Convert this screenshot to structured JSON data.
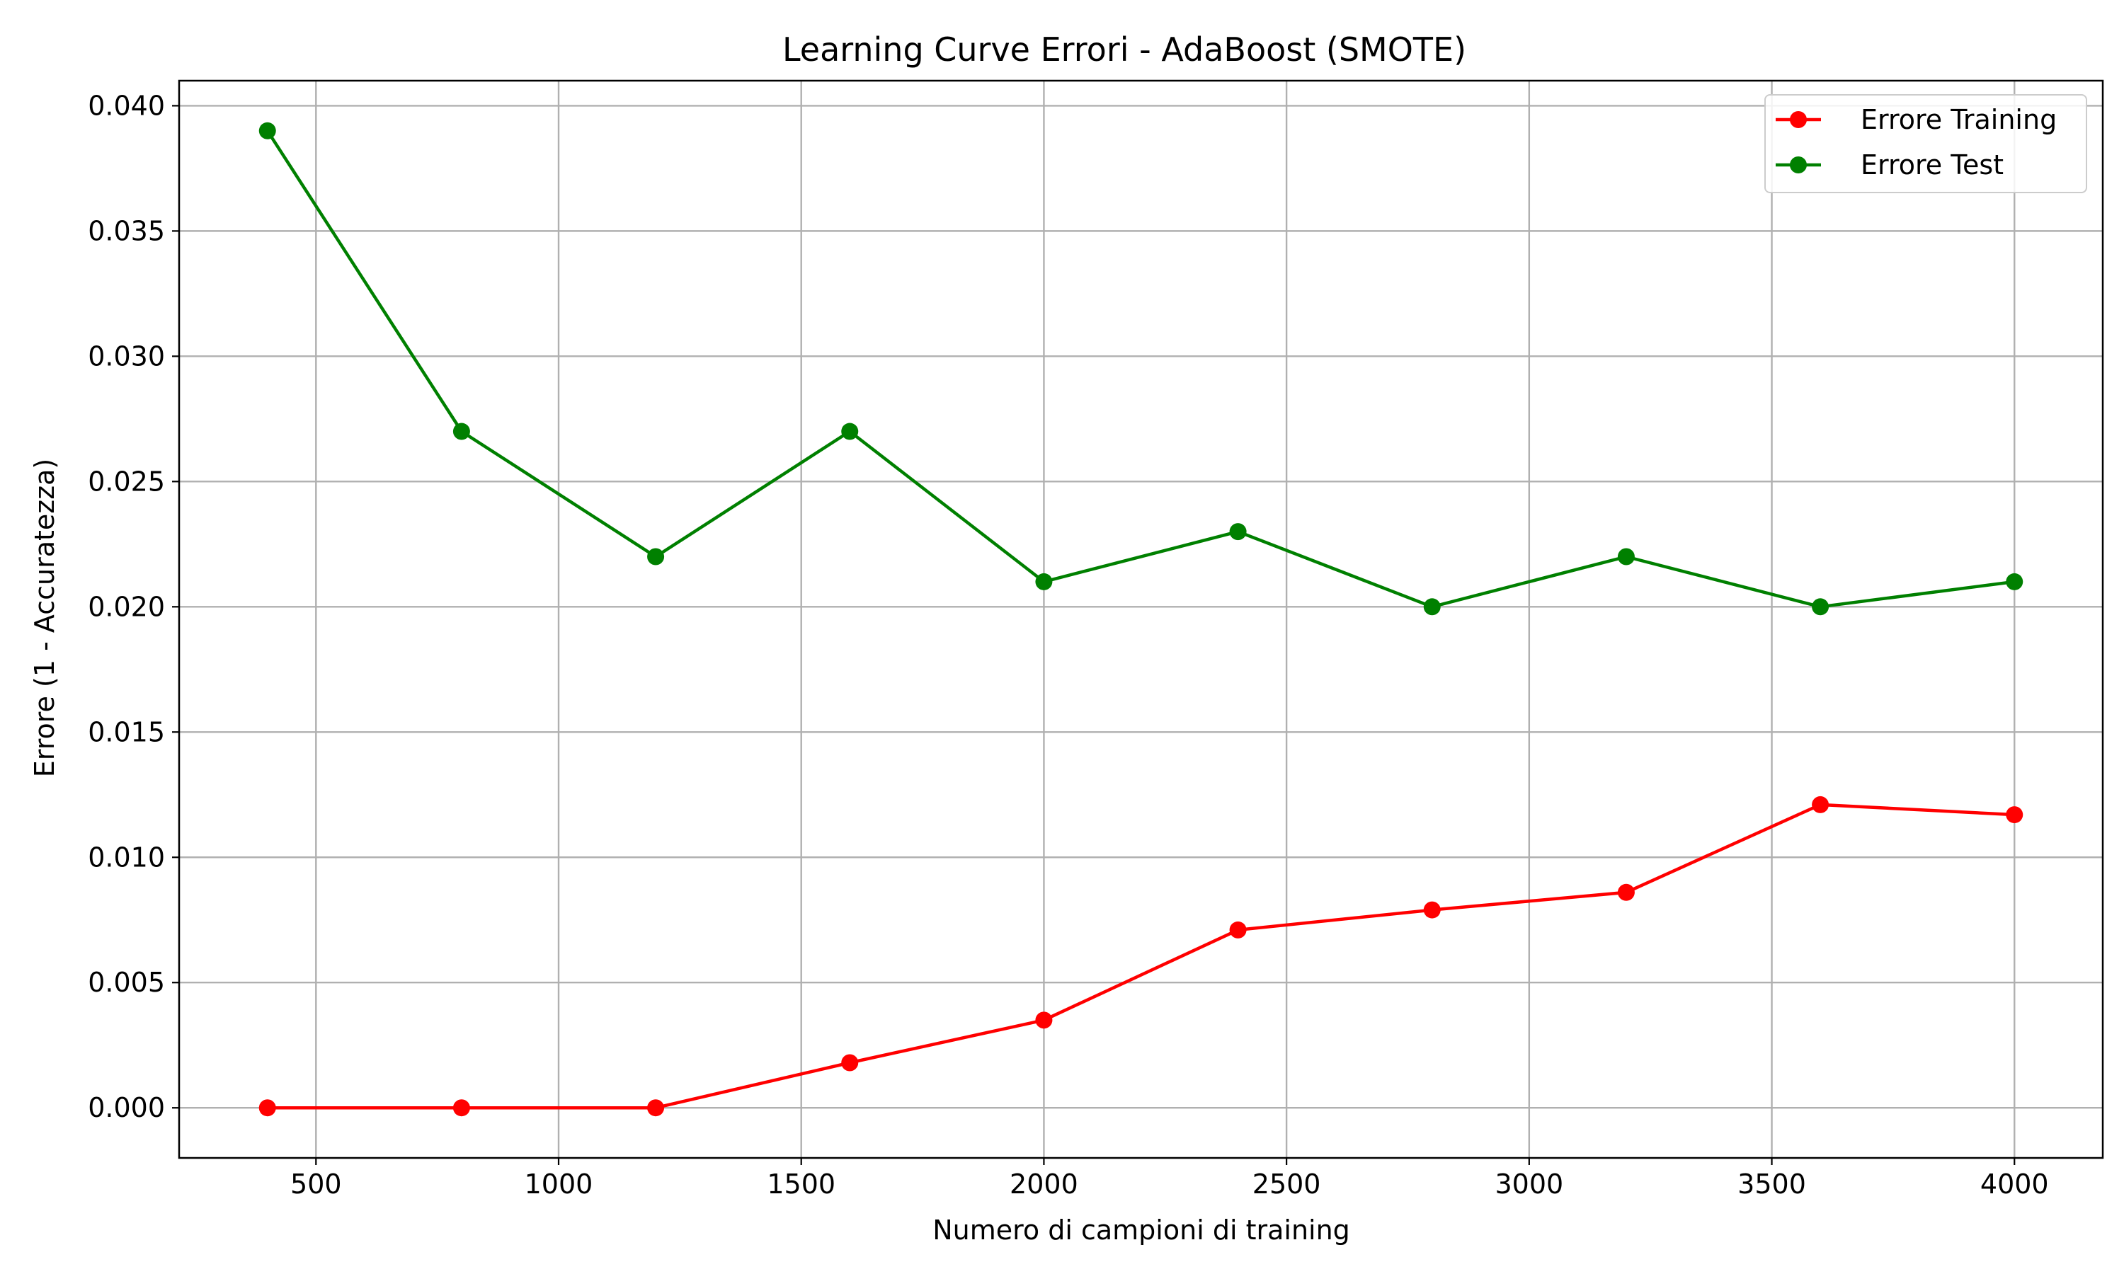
{
  "chart_data": {
    "type": "line",
    "title": "Learning Curve Errori - AdaBoost (SMOTE)",
    "xlabel": "Numero di campioni di training",
    "ylabel": "Errore (1 - Accuratezza)",
    "xlim": [
      218,
      4182
    ],
    "ylim": [
      -0.002,
      0.041
    ],
    "xticks": [
      500,
      1000,
      1500,
      2000,
      2500,
      3000,
      3500,
      4000
    ],
    "xtick_labels": [
      "500",
      "1000",
      "1500",
      "2000",
      "2500",
      "3000",
      "3500",
      "4000"
    ],
    "yticks": [
      0.0,
      0.005,
      0.01,
      0.015,
      0.02,
      0.025,
      0.03,
      0.035,
      0.04
    ],
    "ytick_labels": [
      "0.000",
      "0.005",
      "0.010",
      "0.015",
      "0.020",
      "0.025",
      "0.030",
      "0.035",
      "0.040"
    ],
    "grid": true,
    "legend_position": "top-right",
    "x": [
      400,
      800,
      1200,
      1600,
      2000,
      2400,
      2800,
      3200,
      3600,
      4000
    ],
    "series": [
      {
        "name": "Errore Training",
        "color": "#ff0000",
        "marker": "circle",
        "values": [
          0.0,
          0.0,
          0.0,
          0.0018,
          0.0035,
          0.0071,
          0.0079,
          0.0086,
          0.0121,
          0.0117
        ]
      },
      {
        "name": "Errore Test",
        "color": "#008000",
        "marker": "circle",
        "values": [
          0.039,
          0.027,
          0.022,
          0.027,
          0.021,
          0.023,
          0.02,
          0.022,
          0.02,
          0.021
        ]
      }
    ]
  }
}
